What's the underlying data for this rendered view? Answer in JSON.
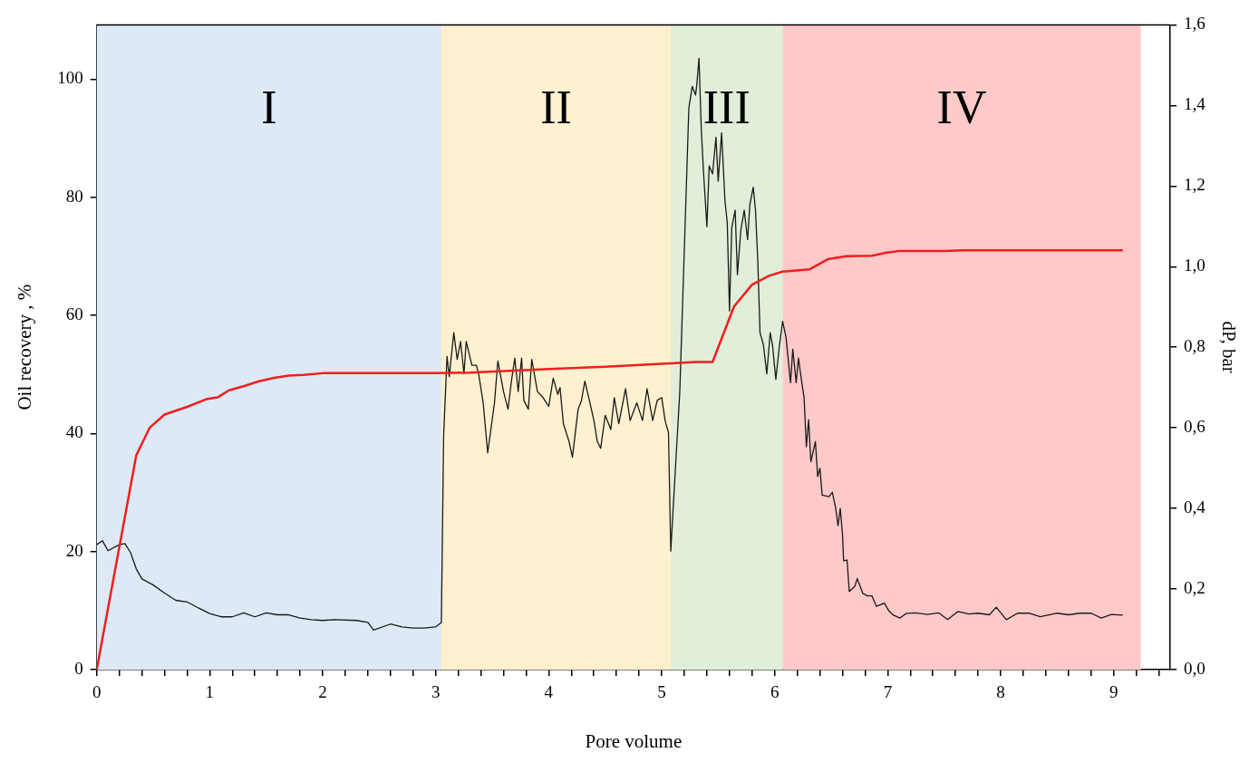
{
  "chart_data": {
    "type": "line",
    "xlabel": "Pore volume",
    "ylabel": "Oil recovery , %",
    "y2label": "dP, bar",
    "xlim": [
      0,
      9.5
    ],
    "ylim": [
      0,
      109.2
    ],
    "y2lim": [
      0,
      1.6
    ],
    "xticks": [
      0,
      {
        "value": 0.2,
        "label": null
      },
      {
        "value": 0.4,
        "label": null
      },
      {
        "value": 0.6,
        "label": null
      },
      {
        "value": 0.8,
        "label": null
      },
      1,
      {
        "value": 1.2,
        "label": null
      },
      {
        "value": 1.4,
        "label": null
      },
      {
        "value": 1.6,
        "label": null
      },
      {
        "value": 1.8,
        "label": null
      },
      2,
      {
        "value": 2.2,
        "label": null
      },
      {
        "value": 2.4,
        "label": null
      },
      {
        "value": 2.6,
        "label": null
      },
      {
        "value": 2.8,
        "label": null
      },
      3,
      {
        "value": 3.2,
        "label": null
      },
      {
        "value": 3.4,
        "label": null
      },
      {
        "value": 3.6,
        "label": null
      },
      {
        "value": 3.8,
        "label": null
      },
      4,
      {
        "value": 4.2,
        "label": null
      },
      {
        "value": 4.4,
        "label": null
      },
      {
        "value": 4.6,
        "label": null
      },
      {
        "value": 4.8,
        "label": null
      },
      5,
      {
        "value": 5.2,
        "label": null
      },
      {
        "value": 5.4,
        "label": null
      },
      {
        "value": 5.6,
        "label": null
      },
      {
        "value": 5.8,
        "label": null
      },
      6,
      {
        "value": 6.2,
        "label": null
      },
      {
        "value": 6.4,
        "label": null
      },
      {
        "value": 6.6,
        "label": null
      },
      {
        "value": 6.8,
        "label": null
      },
      7,
      {
        "value": 7.2,
        "label": null
      },
      {
        "value": 7.4,
        "label": null
      },
      {
        "value": 7.6,
        "label": null
      },
      {
        "value": 7.8,
        "label": null
      },
      8,
      {
        "value": 8.2,
        "label": null
      },
      {
        "value": 8.4,
        "label": null
      },
      {
        "value": 8.6,
        "label": null
      },
      {
        "value": 8.8,
        "label": null
      },
      9,
      {
        "value": 9.2,
        "label": null
      },
      {
        "value": 9.4,
        "label": null
      }
    ],
    "yticks": [
      0,
      20,
      40,
      60,
      80,
      100
    ],
    "y2ticks": [
      {
        "value": 0,
        "label": "0,0"
      },
      {
        "value": 0.2,
        "label": "0,2"
      },
      {
        "value": 0.4,
        "label": "0,4"
      },
      {
        "value": 0.6,
        "label": "0,6"
      },
      {
        "value": 0.8,
        "label": "0,8"
      },
      {
        "value": 1.0,
        "label": "1,0"
      },
      {
        "value": 1.2,
        "label": "1,2"
      },
      {
        "value": 1.4,
        "label": "1,4"
      },
      {
        "value": 1.6,
        "label": "1,6"
      }
    ],
    "grid": false,
    "legend": false,
    "bands": [
      {
        "axis": "x",
        "from": 0,
        "to": 3.05,
        "label": "I",
        "color": "#dde9f5"
      },
      {
        "axis": "x",
        "from": 3.05,
        "to": 5.08,
        "label": "II",
        "color": "#fff1cf"
      },
      {
        "axis": "x",
        "from": 5.08,
        "to": 6.07,
        "label": "III",
        "color": "#e1eed9"
      },
      {
        "axis": "x",
        "from": 6.07,
        "to": 9.24,
        "label": "IV",
        "color": "#fdc9c9"
      }
    ],
    "series": [
      {
        "color": "#f01e1e",
        "x": [
          0,
          0.35,
          0.47,
          0.6,
          0.8,
          0.97,
          1.07,
          1.17,
          1.3,
          1.43,
          1.57,
          1.7,
          1.83,
          2.0,
          3.0,
          3.3,
          4.0,
          4.5,
          5.0,
          5.3,
          5.45,
          5.64,
          5.8,
          5.95,
          6.07,
          6.31,
          6.47,
          6.63,
          6.86,
          6.98,
          7.1,
          7.5,
          7.67,
          9.08
        ],
        "values": [
          0,
          36.3,
          41,
          43.2,
          44.5,
          45.8,
          46.1,
          47.3,
          48,
          48.8,
          49.4,
          49.8,
          49.9,
          50.2,
          50.2,
          50.3,
          50.9,
          51.3,
          51.8,
          52.1,
          52.1,
          61.5,
          65.2,
          66.7,
          67.4,
          67.8,
          69.5,
          70.0,
          70.1,
          70.6,
          70.9,
          70.9,
          71.0,
          71.0
        ]
      },
      {
        "color": "#1a1a1a",
        "axis": "y2",
        "x": [
          0,
          0.05,
          0.1,
          0.2,
          0.25,
          0.3,
          0.35,
          0.4,
          0.5,
          0.6,
          0.7,
          0.8,
          0.9,
          1.0,
          1.1,
          1.2,
          1.3,
          1.4,
          1.5,
          1.6,
          1.7,
          1.8,
          1.9,
          2.0,
          2.1,
          2.3,
          2.4,
          2.45,
          2.6,
          2.7,
          2.8,
          2.9,
          3.0,
          3.05,
          3.07,
          3.1,
          3.12,
          3.16,
          3.19,
          3.22,
          3.25,
          3.27,
          3.32,
          3.36,
          3.38,
          3.42,
          3.46,
          3.52,
          3.55,
          3.6,
          3.64,
          3.67,
          3.7,
          3.73,
          3.76,
          3.78,
          3.82,
          3.85,
          3.9,
          3.95,
          4.0,
          4.04,
          4.08,
          4.1,
          4.13,
          4.18,
          4.21,
          4.26,
          4.29,
          4.32,
          4.36,
          4.4,
          4.43,
          4.46,
          4.5,
          4.55,
          4.58,
          4.62,
          4.68,
          4.72,
          4.78,
          4.83,
          4.87,
          4.92,
          4.96,
          5.0,
          5.03,
          5.06,
          5.08,
          5.16,
          5.24,
          5.27,
          5.3,
          5.31,
          5.33,
          5.35,
          5.37,
          5.4,
          5.42,
          5.45,
          5.48,
          5.5,
          5.53,
          5.56,
          5.58,
          5.6,
          5.62,
          5.65,
          5.67,
          5.7,
          5.73,
          5.76,
          5.78,
          5.81,
          5.83,
          5.85,
          5.87,
          5.9,
          5.93,
          5.96,
          5.98,
          6.01,
          6.04,
          6.07,
          6.1,
          6.14,
          6.16,
          6.19,
          6.21,
          6.24,
          6.26,
          6.28,
          6.3,
          6.32,
          6.36,
          6.38,
          6.4,
          6.42,
          6.48,
          6.51,
          6.54,
          6.56,
          6.58,
          6.6,
          6.61,
          6.64,
          6.66,
          6.71,
          6.73,
          6.78,
          6.82,
          6.86,
          6.9,
          6.97,
          7.01,
          7.05,
          7.11,
          7.16,
          7.24,
          7.35,
          7.45,
          7.53,
          7.62,
          7.72,
          7.8,
          7.9,
          7.96,
          8.05,
          8.15,
          8.25,
          8.35,
          8.5,
          8.6,
          8.7,
          8.8,
          8.89,
          8.98,
          9.08
        ],
        "values": [
          0.31,
          0.32,
          0.295,
          0.31,
          0.313,
          0.29,
          0.25,
          0.225,
          0.21,
          0.19,
          0.172,
          0.168,
          0.153,
          0.139,
          0.131,
          0.131,
          0.141,
          0.131,
          0.141,
          0.136,
          0.136,
          0.128,
          0.124,
          0.122,
          0.124,
          0.122,
          0.117,
          0.098,
          0.113,
          0.106,
          0.103,
          0.103,
          0.106,
          0.117,
          0.58,
          0.777,
          0.727,
          0.836,
          0.77,
          0.814,
          0.734,
          0.814,
          0.755,
          0.755,
          0.734,
          0.662,
          0.538,
          0.662,
          0.766,
          0.69,
          0.646,
          0.716,
          0.773,
          0.69,
          0.773,
          0.668,
          0.646,
          0.77,
          0.69,
          0.675,
          0.653,
          0.723,
          0.683,
          0.7,
          0.61,
          0.566,
          0.527,
          0.646,
          0.668,
          0.716,
          0.668,
          0.618,
          0.566,
          0.549,
          0.631,
          0.596,
          0.675,
          0.61,
          0.697,
          0.618,
          0.662,
          0.618,
          0.697,
          0.618,
          0.668,
          0.675,
          0.618,
          0.588,
          0.294,
          0.69,
          1.393,
          1.447,
          1.426,
          1.45,
          1.517,
          1.343,
          1.234,
          1.099,
          1.25,
          1.23,
          1.321,
          1.212,
          1.332,
          1.162,
          1.11,
          0.89,
          1.097,
          1.14,
          0.98,
          1.09,
          1.14,
          1.067,
          1.154,
          1.197,
          1.14,
          1.016,
          0.836,
          0.806,
          0.734,
          0.836,
          0.806,
          0.72,
          0.8,
          0.864,
          0.825,
          0.712,
          0.795,
          0.712,
          0.773,
          0.712,
          0.675,
          0.553,
          0.62,
          0.516,
          0.566,
          0.479,
          0.5,
          0.433,
          0.429,
          0.44,
          0.4,
          0.357,
          0.4,
          0.335,
          0.27,
          0.272,
          0.194,
          0.207,
          0.226,
          0.189,
          0.183,
          0.183,
          0.157,
          0.165,
          0.146,
          0.135,
          0.128,
          0.139,
          0.141,
          0.137,
          0.141,
          0.124,
          0.144,
          0.138,
          0.14,
          0.136,
          0.155,
          0.124,
          0.14,
          0.14,
          0.131,
          0.14,
          0.136,
          0.14,
          0.14,
          0.128,
          0.137,
          0.135
        ]
      }
    ]
  }
}
